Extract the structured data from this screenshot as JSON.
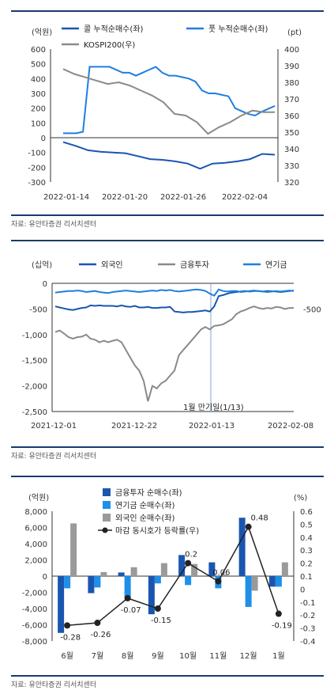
{
  "chart_data": [
    {
      "type": "line",
      "left_unit": "(억원)",
      "right_unit": "(pt)",
      "x_ticks": [
        "2022-01-14",
        "2022-01-20",
        "2022-01-26",
        "2022-02-04"
      ],
      "ylim_left": [
        -300,
        600
      ],
      "yticks_left": [
        -300,
        -200,
        -100,
        0,
        100,
        200,
        300,
        400,
        500,
        600
      ],
      "ylim_right": [
        320,
        400
      ],
      "yticks_right": [
        320,
        330,
        340,
        350,
        360,
        370,
        380,
        390,
        400
      ],
      "series": [
        {
          "name": "콜 누적순매수(좌)",
          "axis": "left",
          "color": "#1a56b0",
          "values": [
            -30,
            -55,
            -85,
            -95,
            -100,
            -105,
            -125,
            -145,
            -150,
            -160,
            -175,
            -210,
            -175,
            -170,
            -160,
            -145,
            -110,
            -115
          ]
        },
        {
          "name": "풋 누적순매수(좌)",
          "axis": "left",
          "color": "#1f7fe0",
          "values": [
            30,
            30,
            30,
            40,
            480,
            480,
            480,
            480,
            460,
            440,
            440,
            420,
            440,
            460,
            480,
            440,
            420,
            420,
            410,
            400,
            380,
            320,
            300,
            300,
            290,
            280,
            200,
            180,
            160,
            150,
            175,
            195,
            215
          ]
        },
        {
          "name": "KOSPI200(우)",
          "axis": "right",
          "color": "#8a8a8a",
          "values": [
            388,
            385,
            383,
            381,
            379,
            380,
            378,
            375,
            372,
            368,
            361,
            360,
            356,
            349,
            353,
            356,
            360,
            363,
            362,
            362
          ]
        }
      ]
    },
    {
      "type": "line",
      "left_unit": "(십억)",
      "x_ticks": [
        "2021-12-01",
        "2021-12-22",
        "2022-01-13",
        "2022-02-08"
      ],
      "ylim_left": [
        -2500,
        0
      ],
      "yticks_left": [
        -2500,
        -2000,
        -1500,
        -1000,
        -500,
        0
      ],
      "right_label": "-500",
      "annotation": "1월 만기일(1/13)",
      "series": [
        {
          "name": "외국인",
          "color": "#1a56b0",
          "values": [
            -450,
            -470,
            -490,
            -510,
            -520,
            -500,
            -480,
            -470,
            -430,
            -440,
            -430,
            -440,
            -440,
            -440,
            -450,
            -430,
            -450,
            -460,
            -440,
            -470,
            -470,
            -460,
            -480,
            -480,
            -470,
            -470,
            -460,
            -550,
            -560,
            -570,
            -560,
            -560,
            -550,
            -540,
            -530,
            -550,
            -450,
            -250,
            -230,
            -200,
            -180,
            -170,
            -160,
            -150,
            -160,
            -150,
            -150,
            -160,
            -150,
            -155,
            -160,
            -170,
            -160,
            -150,
            -140
          ]
        },
        {
          "name": "금융투자",
          "color": "#8a8a8a",
          "values": [
            -950,
            -920,
            -980,
            -1050,
            -1080,
            -1050,
            -1040,
            -1000,
            -1080,
            -1100,
            -1150,
            -1120,
            -1150,
            -1120,
            -1100,
            -1150,
            -1300,
            -1450,
            -1600,
            -1700,
            -1900,
            -2300,
            -2000,
            -2050,
            -1950,
            -1900,
            -1800,
            -1700,
            -1400,
            -1300,
            -1200,
            -1100,
            -1000,
            -900,
            -850,
            -900,
            -830,
            -820,
            -800,
            -750,
            -700,
            -600,
            -550,
            -520,
            -480,
            -450,
            -480,
            -500,
            -480,
            -490,
            -460,
            -470,
            -500,
            -480,
            -480
          ]
        },
        {
          "name": "연기금",
          "color": "#1f7fe0",
          "values": [
            -180,
            -170,
            -160,
            -150,
            -150,
            -140,
            -150,
            -170,
            -160,
            -150,
            -170,
            -180,
            -190,
            -170,
            -160,
            -150,
            -140,
            -150,
            -160,
            -170,
            -160,
            -150,
            -140,
            -150,
            -130,
            -140,
            -130,
            -150,
            -160,
            -150,
            -140,
            -130,
            -120,
            -130,
            -150,
            -200,
            -240,
            -120,
            -150,
            -160,
            -150,
            -150,
            -170,
            -160,
            -150,
            -140,
            -150,
            -160,
            -170,
            -160,
            -150,
            -160,
            -150,
            -140,
            -150
          ]
        }
      ]
    },
    {
      "type": "bar",
      "left_unit": "(억원)",
      "right_unit": "(%)",
      "categories": [
        "6월",
        "7월",
        "8월",
        "9월",
        "10월",
        "11월",
        "12월",
        "1월"
      ],
      "ylim_left": [
        -8000,
        8000
      ],
      "yticks_left": [
        -8000,
        -6000,
        -4000,
        -2000,
        0,
        2000,
        4000,
        6000,
        8000
      ],
      "ylim_right": [
        -0.4,
        0.6
      ],
      "yticks_right": [
        -0.4,
        -0.3,
        -0.2,
        -0.1,
        0,
        0.1,
        0.2,
        0.3,
        0.4,
        0.5,
        0.6
      ],
      "series": [
        {
          "name": "금융투자 순매수(좌)",
          "color": "#1a56b0",
          "values": [
            -7000,
            -2100,
            450,
            -4700,
            2600,
            1700,
            7200,
            -1300
          ]
        },
        {
          "name": "연기금 순매수(좌)",
          "color": "#1f8fe8",
          "values": [
            -1500,
            -1400,
            -2700,
            -900,
            -1100,
            -1500,
            -3800,
            -1300
          ]
        },
        {
          "name": "외국인 순매수(좌)",
          "color": "#9a9a9a",
          "values": [
            6500,
            500,
            1100,
            1600,
            1500,
            200,
            -1800,
            1700
          ]
        }
      ],
      "line_series": {
        "name": "마감 동시호가 등락률(우)",
        "color": "#222222",
        "values": [
          -0.28,
          -0.26,
          -0.07,
          -0.15,
          0.2,
          0.06,
          0.48,
          -0.19
        ]
      }
    }
  ],
  "sources": [
    "자료: 유안타증권 리서치센터",
    "자료: 유안타증권 리서치센터",
    "자료: 유안타증권 리서치센터"
  ]
}
